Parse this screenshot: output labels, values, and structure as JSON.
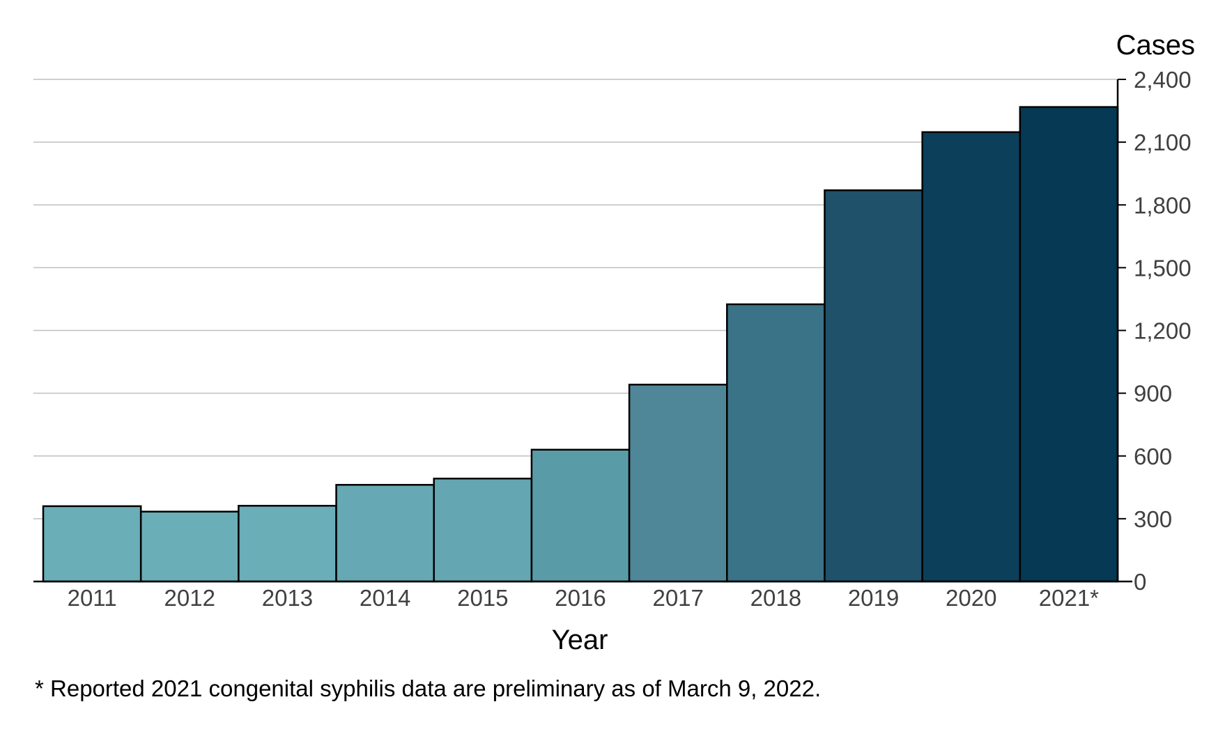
{
  "chart_data": {
    "type": "bar",
    "categories": [
      "2011",
      "2012",
      "2013",
      "2014",
      "2015",
      "2016",
      "2017",
      "2018",
      "2019",
      "2020",
      "2021*"
    ],
    "values": [
      360,
      334,
      362,
      462,
      492,
      630,
      941,
      1325,
      1870,
      2148,
      2268
    ],
    "bar_colors": [
      "#6aaeb8",
      "#6aaeb8",
      "#6aaeb8",
      "#66a8b3",
      "#64a6b1",
      "#5a9ba8",
      "#4f8798",
      "#3a7287",
      "#1f516a",
      "#0b3f5a",
      "#053954"
    ],
    "xlabel": "Year",
    "ylabel": "Cases",
    "ylim": [
      0,
      2400
    ],
    "yticks": [
      0,
      300,
      600,
      900,
      1200,
      1500,
      1800,
      2100,
      2400
    ],
    "ytick_labels": [
      "0",
      "300",
      "600",
      "900",
      "1,200",
      "1,500",
      "1,800",
      "2,100",
      "2,400"
    ],
    "y_axis_side": "right",
    "grid": true,
    "legend": "none"
  },
  "footnote": "* Reported 2021 congenital syphilis data are preliminary as of March 9, 2022."
}
